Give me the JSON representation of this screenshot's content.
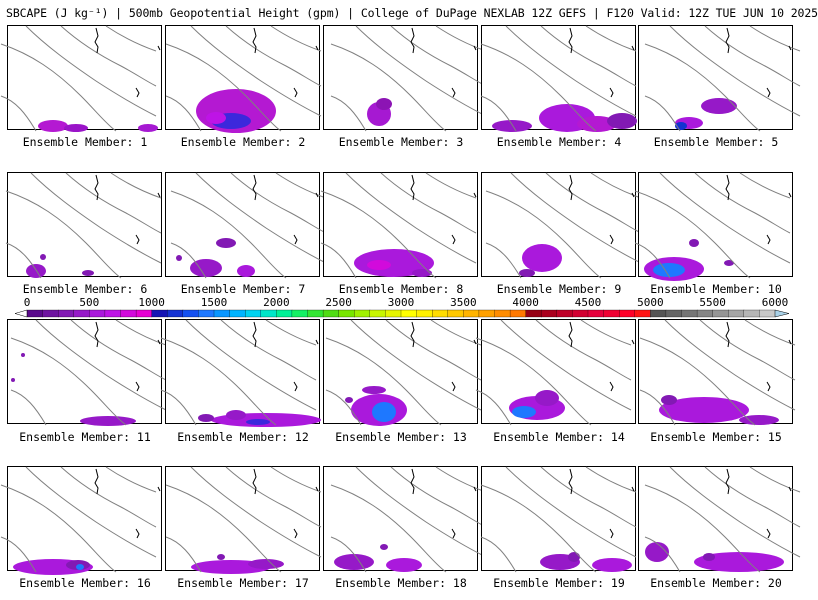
{
  "title": "SBCAPE (J kg⁻¹) | 500mb Geopotential Height (gpm) | College of DuPage NEXLAB 12Z GEFS | F120 Valid: 12Z TUE JUN 10 2025",
  "panels": [
    {
      "label": "Ensemble Member: 1"
    },
    {
      "label": "Ensemble Member: 2"
    },
    {
      "label": "Ensemble Member: 3"
    },
    {
      "label": "Ensemble Member: 4"
    },
    {
      "label": "Ensemble Member: 5"
    },
    {
      "label": "Ensemble Member: 6"
    },
    {
      "label": "Ensemble Member: 7"
    },
    {
      "label": "Ensemble Member: 8"
    },
    {
      "label": "Ensemble Member: 9"
    },
    {
      "label": "Ensemble Member: 10"
    },
    {
      "label": "Ensemble Member: 11"
    },
    {
      "label": "Ensemble Member: 12"
    },
    {
      "label": "Ensemble Member: 13"
    },
    {
      "label": "Ensemble Member: 14"
    },
    {
      "label": "Ensemble Member: 15"
    },
    {
      "label": "Ensemble Member: 16"
    },
    {
      "label": "Ensemble Member: 17"
    },
    {
      "label": "Ensemble Member: 18"
    },
    {
      "label": "Ensemble Member: 19"
    },
    {
      "label": "Ensemble Member: 20"
    }
  ],
  "colorbar": {
    "ticks": [
      "0",
      "500",
      "1000",
      "1500",
      "2000",
      "2500",
      "3000",
      "3500",
      "4000",
      "4500",
      "5000",
      "5500",
      "6000"
    ],
    "colors": [
      "#5a0a8c",
      "#6e14a0",
      "#8219b4",
      "#9619c8",
      "#aa19dc",
      "#be14e6",
      "#d20adc",
      "#e600d2",
      "#1414b4",
      "#1432d2",
      "#1450f0",
      "#1e78ff",
      "#0a96ff",
      "#00b4ff",
      "#00d2f0",
      "#00e6c8",
      "#00f096",
      "#14f064",
      "#32e632",
      "#50dc14",
      "#78e600",
      "#a0f000",
      "#c8f500",
      "#e6f500",
      "#ffff00",
      "#fff000",
      "#ffdc00",
      "#ffc800",
      "#ffb400",
      "#ffa000",
      "#ff8c00",
      "#ff7800",
      "#960014",
      "#aa001e",
      "#be0028",
      "#d20032",
      "#e6003c",
      "#f00032",
      "#ff0028",
      "#ff1414",
      "#555555",
      "#656565",
      "#757575",
      "#858585",
      "#959595",
      "#a5a5a5",
      "#b5b5b5",
      "#c8c8c8"
    ]
  }
}
